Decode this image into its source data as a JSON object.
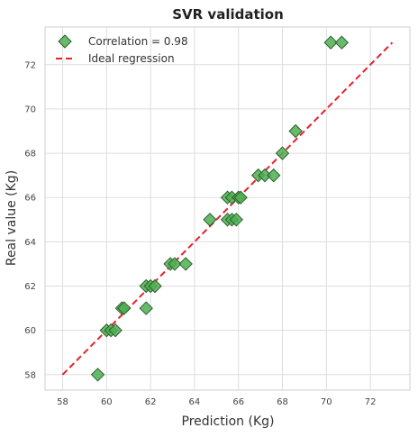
{
  "chart_data": {
    "type": "scatter",
    "title": "SVR validation",
    "xlabel": "Prediction (Kg)",
    "ylabel": "Real value (Kg)",
    "xlim": [
      57.2,
      73.8
    ],
    "ylim": [
      57.3,
      73.7
    ],
    "xticks": [
      58,
      60,
      62,
      64,
      66,
      68,
      70,
      72
    ],
    "yticks": [
      58,
      60,
      62,
      64,
      66,
      68,
      70,
      72
    ],
    "grid": true,
    "legend_position": "top-left",
    "series": [
      {
        "name": "Correlation = 0.98",
        "marker": "diamond",
        "color": "#4caf50",
        "edge_color": "#2e5e2e",
        "points": [
          {
            "x": 59.6,
            "y": 58
          },
          {
            "x": 60.0,
            "y": 60
          },
          {
            "x": 60.2,
            "y": 60
          },
          {
            "x": 60.4,
            "y": 60
          },
          {
            "x": 60.7,
            "y": 61
          },
          {
            "x": 60.8,
            "y": 61
          },
          {
            "x": 61.8,
            "y": 61
          },
          {
            "x": 61.8,
            "y": 62
          },
          {
            "x": 62.0,
            "y": 62
          },
          {
            "x": 62.2,
            "y": 62
          },
          {
            "x": 62.9,
            "y": 63
          },
          {
            "x": 63.1,
            "y": 63
          },
          {
            "x": 63.6,
            "y": 63
          },
          {
            "x": 64.7,
            "y": 65
          },
          {
            "x": 65.5,
            "y": 65
          },
          {
            "x": 65.7,
            "y": 65
          },
          {
            "x": 65.9,
            "y": 65
          },
          {
            "x": 65.5,
            "y": 66
          },
          {
            "x": 65.7,
            "y": 66
          },
          {
            "x": 66.0,
            "y": 66
          },
          {
            "x": 66.1,
            "y": 66
          },
          {
            "x": 66.9,
            "y": 67
          },
          {
            "x": 67.2,
            "y": 67
          },
          {
            "x": 67.6,
            "y": 67
          },
          {
            "x": 68.0,
            "y": 68
          },
          {
            "x": 68.6,
            "y": 69
          },
          {
            "x": 70.2,
            "y": 73
          },
          {
            "x": 70.7,
            "y": 73
          }
        ]
      },
      {
        "name": "Ideal regression",
        "line_style": "dashed",
        "color": "#e8202a",
        "line": [
          {
            "x": 58,
            "y": 58
          },
          {
            "x": 73,
            "y": 73
          }
        ]
      }
    ]
  }
}
